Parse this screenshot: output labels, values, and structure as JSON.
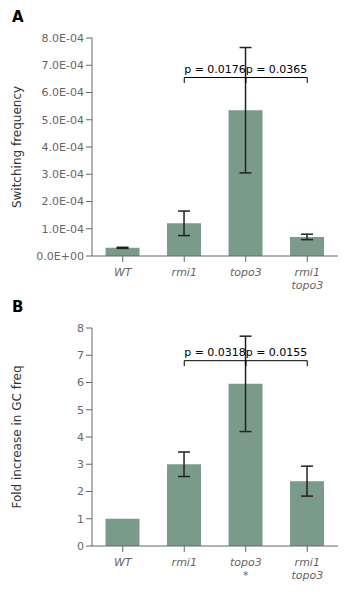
{
  "chart_data": [
    {
      "type": "bar",
      "title": "A",
      "y_label": "Switching frequency",
      "categories": [
        "WT",
        "rmi1",
        "topo3",
        "rmi1\ntopo3"
      ],
      "values": [
        3e-05,
        0.00012,
        0.000535,
        7e-05
      ],
      "errors": [
        2e-06,
        4.5e-05,
        0.00023,
        1e-05
      ],
      "color": "#7a9a8a",
      "ylim": [
        0,
        0.0008
      ],
      "yticks": [
        {
          "value": 0.0,
          "label": "0.0E+00"
        },
        {
          "value": 0.0001,
          "label": "1.0E-04"
        },
        {
          "value": 0.0002,
          "label": "2.0E-04"
        },
        {
          "value": 0.0003,
          "label": "3.0E-04"
        },
        {
          "value": 0.0004,
          "label": "4.0E-04"
        },
        {
          "value": 0.0005,
          "label": "5.0E-04"
        },
        {
          "value": 0.0006,
          "label": "6.0E-04"
        },
        {
          "value": 0.0007,
          "label": "7.0E-04"
        },
        {
          "value": 0.0008,
          "label": "8.0E-04"
        }
      ],
      "grid": false,
      "annotations": [
        {
          "x1": "rmi1",
          "x2": "topo3",
          "y": 0.000655,
          "label": "p = 0.0176"
        },
        {
          "x1": "topo3",
          "x2": "rmi1\ntopo3",
          "y": 0.000655,
          "label": "p = 0.0365"
        }
      ]
    },
    {
      "type": "bar",
      "title": "B",
      "y_label": "Fold increase in GC freq",
      "categories": [
        "WT",
        "rmi1",
        "topo3\n*",
        "rmi1\ntopo3"
      ],
      "values": [
        1.0,
        3.0,
        5.95,
        2.38
      ],
      "errors": [
        0.0,
        0.45,
        1.75,
        0.55
      ],
      "color": "#7a9a8a",
      "ylim": [
        0,
        8
      ],
      "yticks": [
        0,
        1,
        2,
        3,
        4,
        5,
        6,
        7,
        8
      ],
      "grid": false,
      "annotations": [
        {
          "x1": "rmi1",
          "x2": "topo3\n*",
          "y": 6.8,
          "label": "p = 0.0318"
        },
        {
          "x1": "topo3\n*",
          "x2": "rmi1\ntopo3",
          "y": 6.8,
          "label": "p = 0.0155"
        }
      ]
    }
  ]
}
